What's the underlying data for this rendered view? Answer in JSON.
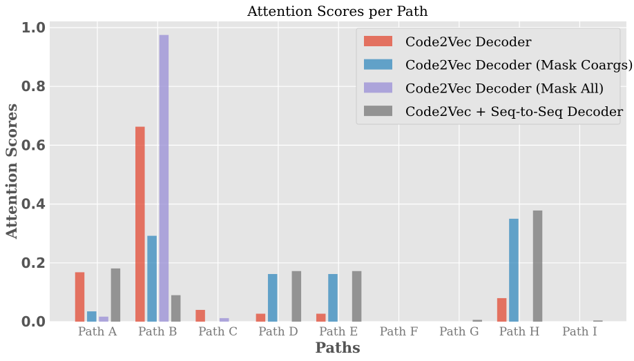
{
  "chart_data": {
    "type": "bar",
    "title": "Attention Scores per Path",
    "xlabel": "Paths",
    "ylabel": "Attention Scores",
    "ylim": [
      0,
      1.0
    ],
    "yticks": [
      "0.0",
      "0.2",
      "0.4",
      "0.6",
      "0.8",
      "1.0"
    ],
    "ytick_values": [
      0,
      0.2,
      0.4,
      0.6,
      0.8,
      1.0
    ],
    "categories": [
      "Path A",
      "Path B",
      "Path C",
      "Path D",
      "Path E",
      "Path F",
      "Path G",
      "Path H",
      "Path I"
    ],
    "grid": true,
    "legend_position": "top-right",
    "series": [
      {
        "name": "Code2Vec Decoder",
        "color": "#E24A33",
        "values": [
          0.168,
          0.663,
          0.04,
          0.027,
          0.027,
          0.0,
          0.0,
          0.08,
          0.0
        ]
      },
      {
        "name": "Code2Vec Decoder (Mask Coargs)",
        "color": "#348ABD",
        "values": [
          0.035,
          0.292,
          0.0,
          0.162,
          0.162,
          0.0,
          0.0,
          0.35,
          0.0
        ]
      },
      {
        "name": "Code2Vec Decoder (Mask All)",
        "color": "#988ED5",
        "values": [
          0.017,
          0.975,
          0.012,
          0.0,
          0.0,
          0.0,
          0.0,
          0.0,
          0.0
        ]
      },
      {
        "name": "Code2Vec + Seq-to-Seq Decoder",
        "color": "#777777",
        "values": [
          0.181,
          0.09,
          0.0,
          0.172,
          0.172,
          0.0,
          0.006,
          0.378,
          0.004
        ]
      }
    ]
  }
}
